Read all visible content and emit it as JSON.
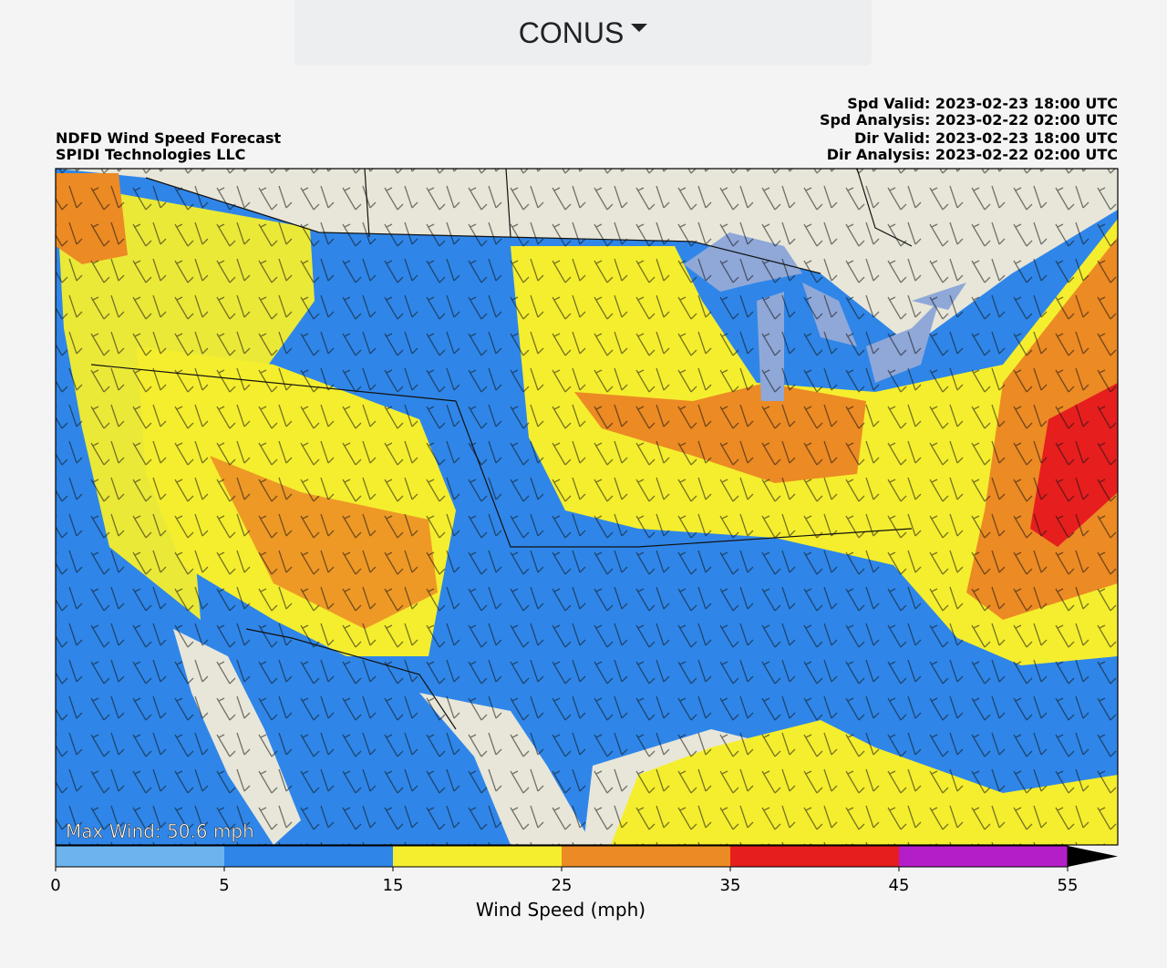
{
  "header": {
    "region": "CONUS"
  },
  "map": {
    "title_lines": [
      "NDFD Wind Speed Forecast",
      "SPIDI Technologies LLC"
    ],
    "valid_lines": [
      "Spd Valid: 2023-02-23 18:00 UTC",
      "Spd Analysis: 2023-02-22 02:00 UTC",
      "Dir Valid: 2023-02-23 18:00 UTC",
      "Dir Analysis: 2023-02-22 02:00 UTC"
    ],
    "max_wind": "Max Wind: 50.6 mph",
    "colorbar": {
      "label": "Wind Speed (mph)",
      "ticks": [
        0,
        5,
        15,
        25,
        35,
        45,
        55
      ],
      "colors": [
        "#6cb4ee",
        "#2f86e8",
        "#f5ee2e",
        "#ec8a24",
        "#e61e1e",
        "#b41ec8"
      ],
      "extend_color": "#000000"
    }
  }
}
